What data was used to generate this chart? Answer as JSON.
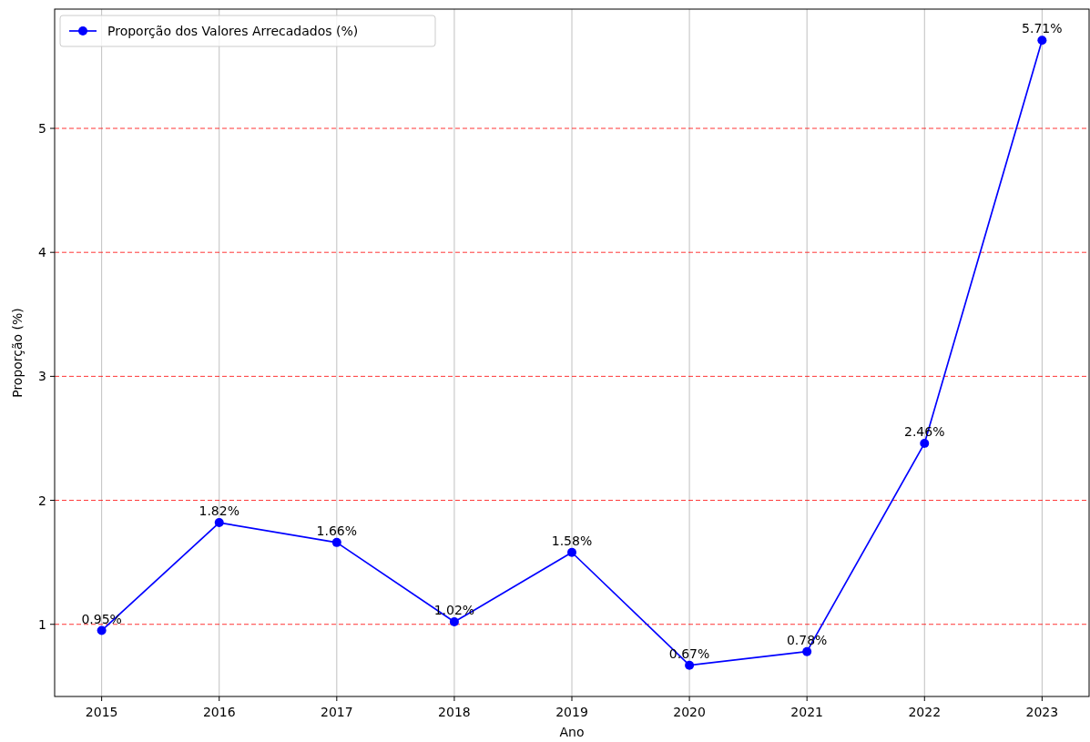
{
  "chart_data": {
    "type": "line",
    "xlabel": "Ano",
    "ylabel": "Proporção (%)",
    "x": [
      2015,
      2016,
      2017,
      2018,
      2019,
      2020,
      2021,
      2022,
      2023
    ],
    "series": [
      {
        "name": "Proporção dos Valores Arrecadados (%)",
        "color": "#0000ff",
        "values": [
          0.95,
          1.82,
          1.66,
          1.02,
          1.58,
          0.67,
          0.78,
          2.46,
          5.71
        ],
        "value_labels": [
          "0.95%",
          "1.82%",
          "1.66%",
          "1.02%",
          "1.58%",
          "0.67%",
          "0.78%",
          "2.46%",
          "5.71%"
        ]
      }
    ],
    "xlim": [
      2014.6,
      2023.4
    ],
    "xticks": [
      2015,
      2016,
      2017,
      2018,
      2019,
      2020,
      2021,
      2022,
      2023
    ],
    "ylim": [
      0.418,
      5.962
    ],
    "yticks": [
      1,
      2,
      3,
      4,
      5
    ],
    "grid": "x",
    "legend": "top left",
    "marker": "circle",
    "line_style": "solid",
    "ref_lines": [
      {
        "axis": "y",
        "value": 1,
        "color": "#ff0000",
        "line_style": "dashed"
      },
      {
        "axis": "y",
        "value": 2,
        "color": "#ff0000",
        "line_style": "dashed"
      },
      {
        "axis": "y",
        "value": 3,
        "color": "#ff0000",
        "line_style": "dashed"
      },
      {
        "axis": "y",
        "value": 4,
        "color": "#ff0000",
        "line_style": "dashed"
      },
      {
        "axis": "y",
        "value": 5,
        "color": "#ff0000",
        "line_style": "dashed"
      }
    ]
  }
}
